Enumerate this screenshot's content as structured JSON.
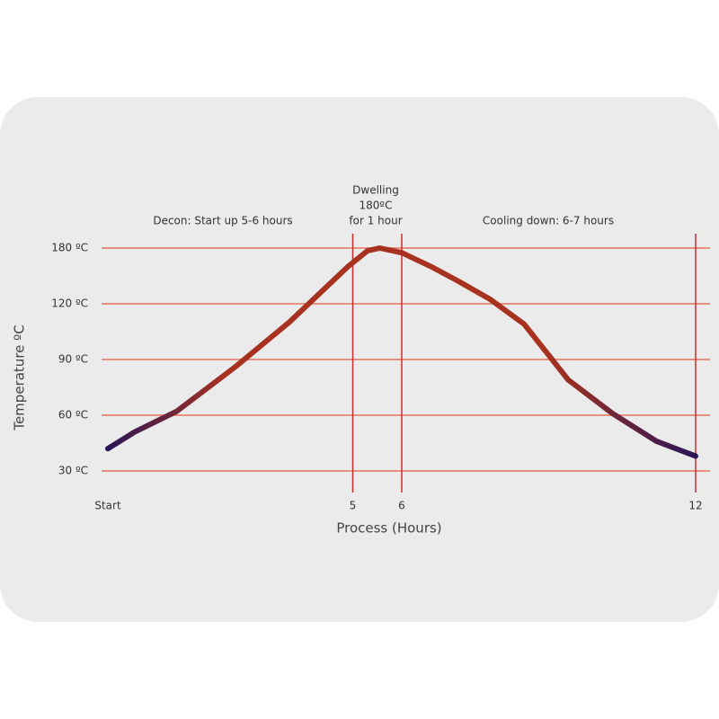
{
  "chart_data": {
    "type": "line",
    "xlabel": "Process (Hours)",
    "ylabel": "Temperature ºC",
    "xlim": [
      0,
      12
    ],
    "xticks": [
      {
        "value": 0,
        "label": "Start"
      },
      5,
      6,
      12
    ],
    "ylim": [
      30,
      180
    ],
    "yticks": [
      {
        "value": 30,
        "label": "30 ºC"
      },
      {
        "value": 60,
        "label": "60 ºC"
      },
      {
        "value": 90,
        "label": "90 ºC"
      },
      {
        "value": 120,
        "label": "120 ºC"
      },
      {
        "value": 180,
        "label": "180 ºC"
      }
    ],
    "grid": true,
    "grid_color": "#e89080",
    "marker_line_color": "#c8302c",
    "annotations": [
      {
        "lines": [
          "Decon: Start up 5-6 hours"
        ]
      },
      {
        "lines": [
          "Dwelling",
          "180ºC",
          "for 1 hour"
        ]
      },
      {
        "lines": [
          "Cooling down: 6-7 hours"
        ]
      }
    ],
    "series": [
      {
        "color": "#a83220",
        "edge_color": "#2a1656",
        "x": [
          0,
          0.55,
          1.4,
          2.6,
          3.7,
          4.9,
          5.3,
          5.55,
          6,
          6.6,
          7.2,
          7.8,
          8.5,
          9.4,
          10.3,
          11.2,
          12
        ],
        "values": [
          42,
          51,
          62,
          86,
          110,
          160,
          177,
          180,
          175,
          160,
          143,
          125,
          109,
          79,
          61,
          46,
          38
        ]
      }
    ]
  }
}
